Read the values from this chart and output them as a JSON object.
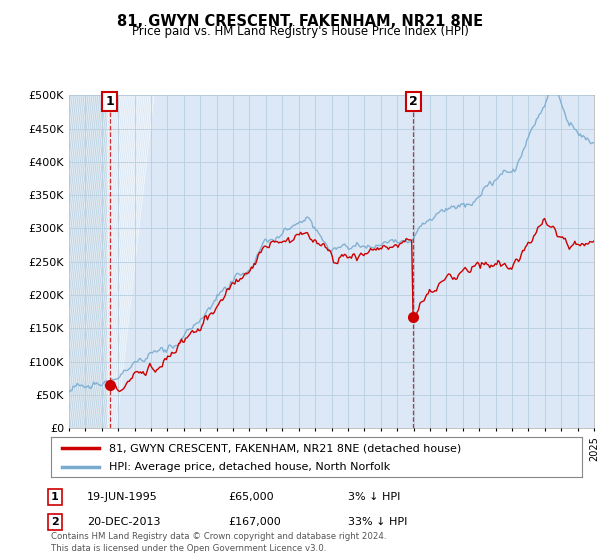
{
  "title": "81, GWYN CRESCENT, FAKENHAM, NR21 8NE",
  "subtitle": "Price paid vs. HM Land Registry's House Price Index (HPI)",
  "legend_line1": "81, GWYN CRESCENT, FAKENHAM, NR21 8NE (detached house)",
  "legend_line2": "HPI: Average price, detached house, North Norfolk",
  "annotation1_date": "19-JUN-1995",
  "annotation1_price": "£65,000",
  "annotation1_hpi": "3% ↓ HPI",
  "annotation2_date": "20-DEC-2013",
  "annotation2_price": "£167,000",
  "annotation2_hpi": "33% ↓ HPI",
  "footer": "Contains HM Land Registry data © Crown copyright and database right 2024.\nThis data is licensed under the Open Government Licence v3.0.",
  "price_color": "#cc0000",
  "hpi_color": "#7aabcf",
  "plot_bg": "#dce8f5",
  "hatch_bg": "#c8d8e8",
  "background_color": "#ffffff",
  "grid_color": "#b8cfe0",
  "ylim": [
    0,
    500000
  ],
  "yticks": [
    0,
    50000,
    100000,
    150000,
    200000,
    250000,
    300000,
    350000,
    400000,
    450000,
    500000
  ],
  "purchase1_x": 1995.47,
  "purchase1_y": 65000,
  "purchase2_x": 2013.97,
  "purchase2_y": 167000,
  "xmin": 1993,
  "xmax": 2025
}
